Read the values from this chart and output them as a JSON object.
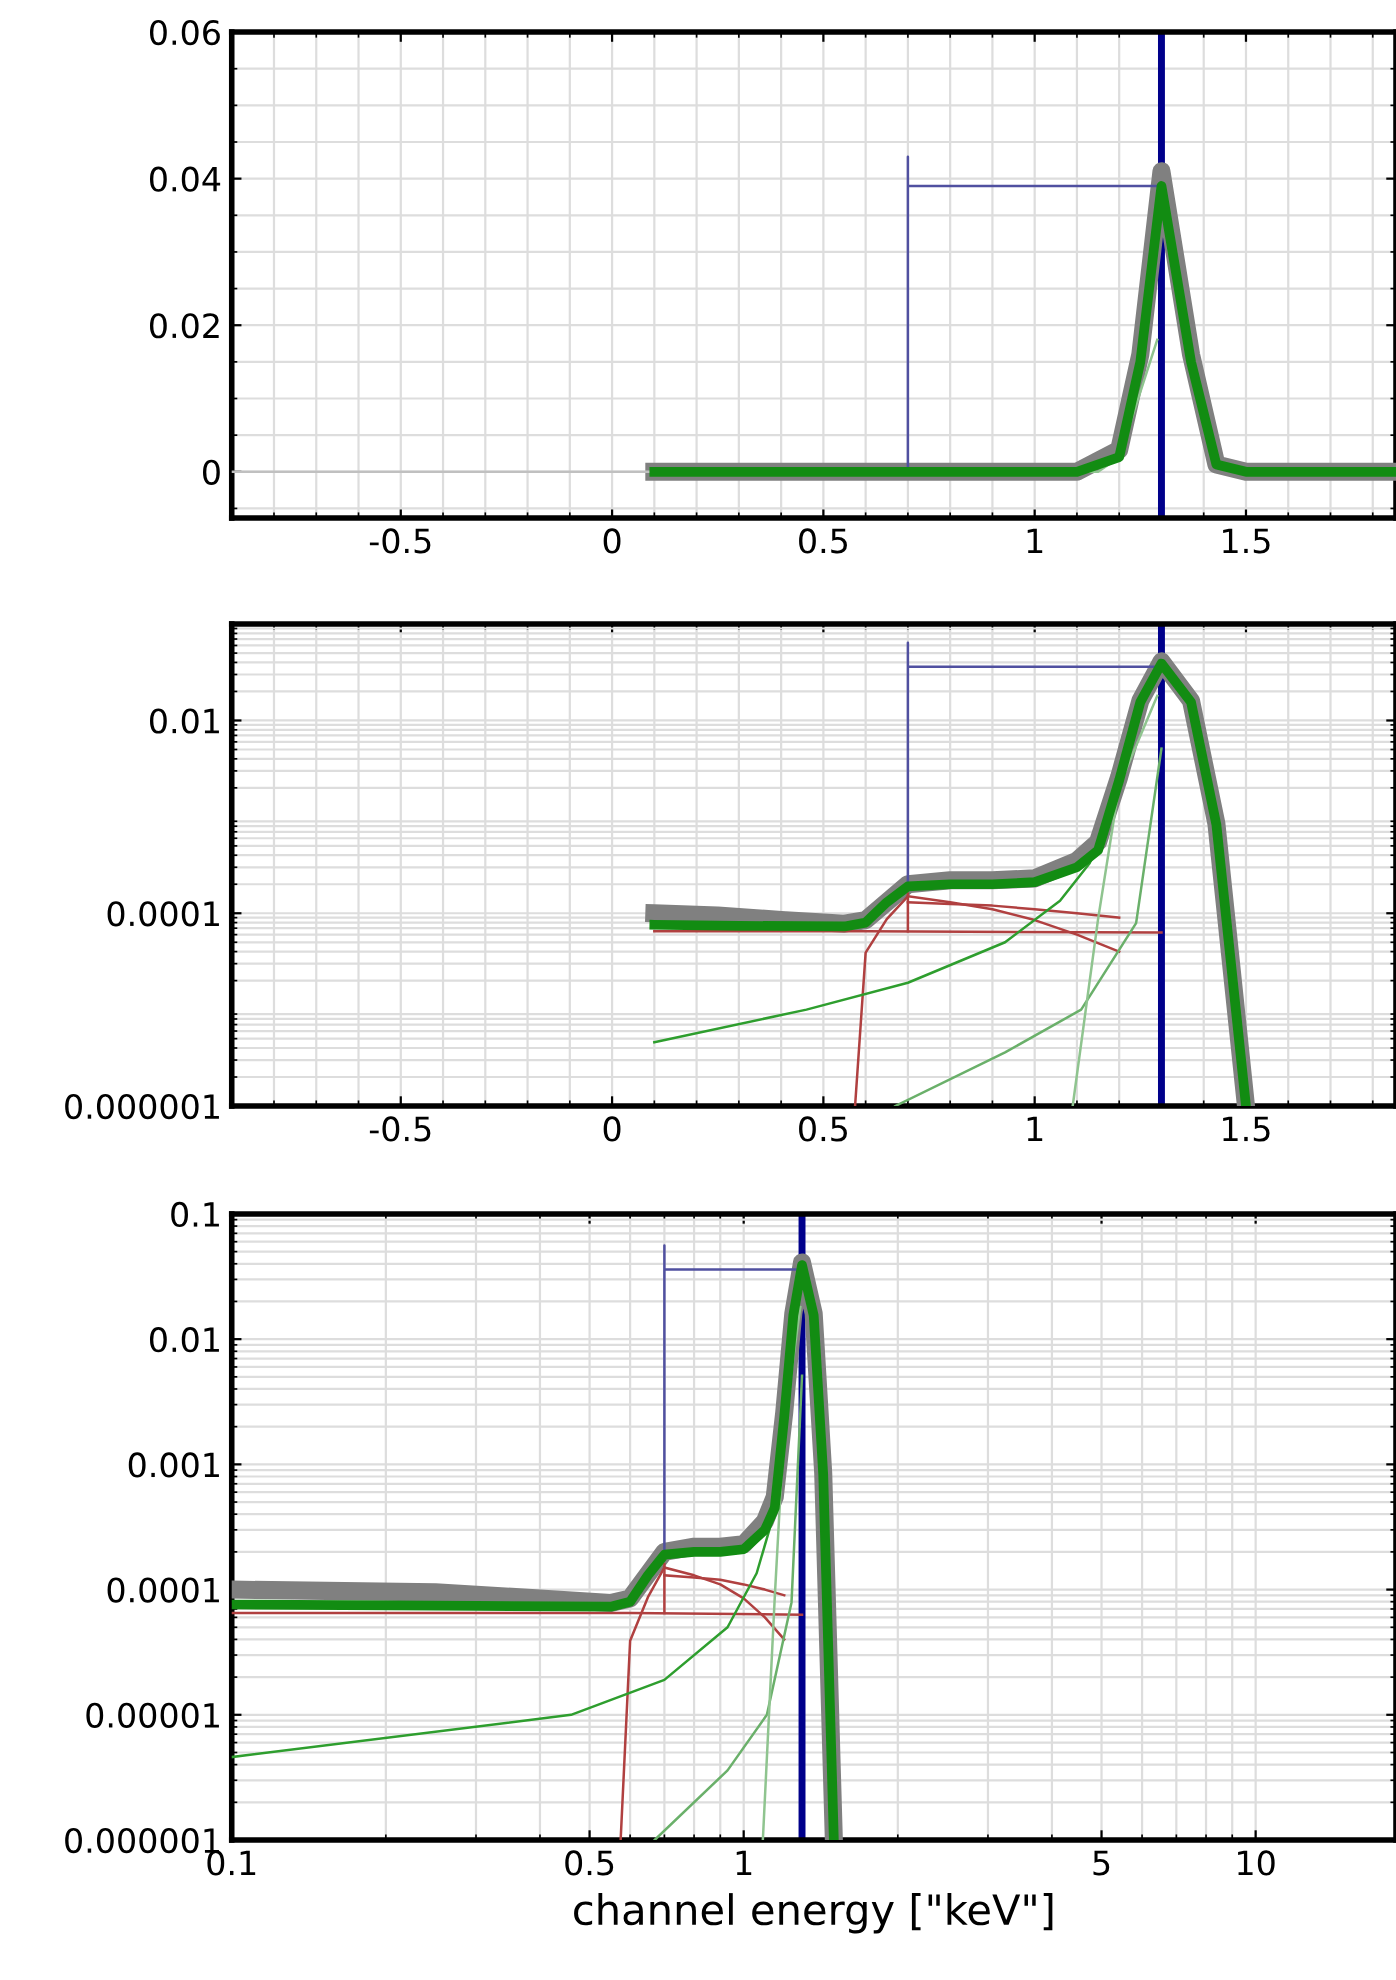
{
  "chart_data": [
    {
      "type": "line",
      "xlim": [
        -0.9,
        1.855
      ],
      "xticks": [
        -0.5,
        0,
        0.5,
        1,
        1.5
      ],
      "ylim": [
        -0.0063,
        0.06
      ],
      "yticks": [
        0,
        0.02,
        0.04,
        0.06
      ],
      "grid": true,
      "legend": false,
      "ref_lines": [
        {
          "axis": "x",
          "value": 1.3,
          "color": "#00008b"
        }
      ],
      "series": [
        {
          "color": "#808080",
          "x": [
            0.1,
            1.1,
            1.2,
            1.25,
            1.3,
            1.37,
            1.43,
            1.5,
            1.855
          ],
          "values": [
            0,
            0,
            0.003,
            0.016,
            0.041,
            0.016,
            0.001,
            0,
            0
          ]
        },
        {
          "color": "#128c12",
          "x": [
            0.1,
            1.1,
            1.2,
            1.25,
            1.3,
            1.37,
            1.43,
            1.5,
            1.855
          ],
          "values": [
            0,
            0,
            0.002,
            0.015,
            0.039,
            0.015,
            0.001,
            0,
            0
          ]
        },
        {
          "color": "#c0c0c0",
          "x": [
            -0.9,
            0.1
          ],
          "values": [
            0,
            0
          ]
        },
        {
          "color": "#8fc48f",
          "x": [
            1.09,
            1.15,
            1.2,
            1.29
          ],
          "values": [
            0,
            0,
            0.002,
            0.018
          ]
        },
        {
          "color": "#5050a0",
          "x": [
            0.7,
            0.7,
            0.7,
            1.3
          ],
          "values": [
            0,
            0.043,
            0.039,
            0.039
          ]
        }
      ]
    },
    {
      "type": "line",
      "log": "y",
      "xlim": [
        -0.9,
        1.855
      ],
      "xticks": [
        -0.5,
        0,
        0.5,
        1,
        1.5
      ],
      "ylim": [
        1e-06,
        0.1
      ],
      "yticks": [
        {
          "value": 1e-06,
          "label": "0.000001"
        },
        {
          "value": 0.0001,
          "label": "0.0001"
        },
        {
          "value": 0.01,
          "label": "0.01"
        }
      ],
      "grid": true,
      "legend": false,
      "ref_lines": [
        {
          "axis": "x",
          "value": 1.3,
          "color": "#00008b"
        }
      ],
      "series": [
        {
          "color": "#808080",
          "x": [
            0.1,
            0.25,
            0.4,
            0.55,
            0.6,
            0.7,
            0.8,
            0.9,
            1.0,
            1.1,
            1.15,
            1.2,
            1.25,
            1.3,
            1.37,
            1.43,
            1.5
          ],
          "values": [
            0.0001,
            9.5e-05,
            8.5e-05,
            7.8e-05,
            8.5e-05,
            0.0002,
            0.00022,
            0.00022,
            0.00023,
            0.00035,
            0.00055,
            0.0026,
            0.016,
            0.041,
            0.016,
            0.00085,
            1e-06
          ]
        },
        {
          "color": "#128c12",
          "x": [
            0.1,
            0.3,
            0.55,
            0.6,
            0.65,
            0.7,
            0.8,
            0.9,
            1.0,
            1.1,
            1.15,
            1.2,
            1.25,
            1.3,
            1.37,
            1.43,
            1.5
          ],
          "values": [
            7.6e-05,
            7.4e-05,
            7.3e-05,
            8e-05,
            0.00013,
            0.00019,
            0.0002,
            0.0002,
            0.00021,
            0.0003,
            0.00045,
            0.0024,
            0.0155,
            0.039,
            0.0155,
            0.00083,
            1e-06
          ]
        },
        {
          "color": "#b04040",
          "x": [
            0.1,
            0.6,
            1.3
          ],
          "values": [
            6.5e-05,
            6.5e-05,
            6.3e-05
          ]
        },
        {
          "color": "#b04040",
          "x": [
            0.575,
            0.6,
            0.65,
            0.7
          ],
          "values": [
            1e-06,
            3.9e-05,
            8.7e-05,
            0.00015
          ]
        },
        {
          "color": "#b04040",
          "x": [
            0.7,
            0.7
          ],
          "values": [
            6.5e-05,
            0.00016
          ]
        },
        {
          "color": "#b04040",
          "x": [
            0.7,
            0.8,
            0.9,
            1.0,
            1.1,
            1.2
          ],
          "values": [
            0.00013,
            0.000125,
            0.00012,
            0.00011,
            0.0001,
            9e-05
          ]
        },
        {
          "color": "#b04040",
          "x": [
            0.7,
            0.8,
            0.9,
            1.0,
            1.1,
            1.2
          ],
          "values": [
            0.00015,
            0.00013,
            0.00011,
            8.5e-05,
            6e-05,
            4e-05
          ]
        },
        {
          "color": "#2e9e2e",
          "x": [
            0.1,
            0.46,
            0.7,
            0.93,
            1.06,
            1.13,
            1.17
          ],
          "values": [
            4.6e-06,
            1e-05,
            1.9e-05,
            5e-05,
            0.000135,
            0.00033,
            0.0008
          ]
        },
        {
          "color": "#6ab06a",
          "x": [
            0.67,
            0.93,
            1.11,
            1.24,
            1.3
          ],
          "values": [
            1e-06,
            3.6e-06,
            1e-05,
            7.9e-05,
            0.0051
          ]
        },
        {
          "color": "#8fc48f",
          "x": [
            1.09,
            1.15,
            1.2,
            1.29
          ],
          "values": [
            1e-06,
            8.7e-05,
            0.0021,
            0.018
          ]
        },
        {
          "color": "#5050a0",
          "x": [
            0.7,
            0.7,
            0.7,
            1.3
          ],
          "values": [
            0.00019,
            0.064,
            0.036,
            0.036
          ]
        }
      ]
    },
    {
      "type": "line",
      "log": "xy",
      "xlabel": "channel energy [\"keV\"]",
      "xlim": [
        0.1,
        18.8
      ],
      "xticks": [
        0.1,
        0.5,
        1,
        5,
        10
      ],
      "ylim": [
        1e-06,
        0.1
      ],
      "yticks": [
        {
          "value": 1e-06,
          "label": "0.000001"
        },
        {
          "value": 1e-05,
          "label": "0.00001"
        },
        {
          "value": 0.0001,
          "label": "0.0001"
        },
        0.001,
        0.01,
        0.1
      ],
      "grid": true,
      "legend": false,
      "ref_lines": [
        {
          "axis": "x",
          "value": 1.3,
          "color": "#00008b"
        }
      ],
      "series": [
        {
          "color": "#808080",
          "x": [
            0.1,
            0.25,
            0.4,
            0.55,
            0.6,
            0.7,
            0.8,
            0.9,
            1.0,
            1.1,
            1.15,
            1.2,
            1.25,
            1.3,
            1.37,
            1.43,
            1.5
          ],
          "values": [
            0.0001,
            9.5e-05,
            8.5e-05,
            7.8e-05,
            8.5e-05,
            0.0002,
            0.00022,
            0.00022,
            0.00023,
            0.00035,
            0.00055,
            0.0026,
            0.016,
            0.041,
            0.016,
            0.00085,
            1e-06
          ]
        },
        {
          "color": "#128c12",
          "x": [
            0.1,
            0.3,
            0.55,
            0.6,
            0.65,
            0.7,
            0.8,
            0.9,
            1.0,
            1.1,
            1.15,
            1.2,
            1.25,
            1.3,
            1.37,
            1.43,
            1.5
          ],
          "values": [
            7.6e-05,
            7.4e-05,
            7.3e-05,
            8e-05,
            0.00013,
            0.00019,
            0.0002,
            0.0002,
            0.00021,
            0.0003,
            0.00045,
            0.0024,
            0.0155,
            0.039,
            0.0155,
            0.00083,
            1e-06
          ]
        },
        {
          "color": "#b04040",
          "x": [
            0.1,
            0.6,
            1.3
          ],
          "values": [
            6.5e-05,
            6.5e-05,
            6.3e-05
          ]
        },
        {
          "color": "#b04040",
          "x": [
            0.575,
            0.6,
            0.65,
            0.7
          ],
          "values": [
            1e-06,
            3.9e-05,
            8.7e-05,
            0.00015
          ]
        },
        {
          "color": "#b04040",
          "x": [
            0.7,
            0.7
          ],
          "values": [
            6.5e-05,
            0.00016
          ]
        },
        {
          "color": "#b04040",
          "x": [
            0.7,
            0.8,
            0.9,
            1.0,
            1.1,
            1.2
          ],
          "values": [
            0.00013,
            0.000125,
            0.00012,
            0.00011,
            0.0001,
            9e-05
          ]
        },
        {
          "color": "#b04040",
          "x": [
            0.7,
            0.8,
            0.9,
            1.0,
            1.1,
            1.2
          ],
          "values": [
            0.00015,
            0.00013,
            0.00011,
            8.5e-05,
            6e-05,
            4e-05
          ]
        },
        {
          "color": "#2e9e2e",
          "x": [
            0.1,
            0.46,
            0.7,
            0.93,
            1.06,
            1.13,
            1.17
          ],
          "values": [
            4.6e-06,
            1e-05,
            1.9e-05,
            5e-05,
            0.000135,
            0.00033,
            0.0008
          ]
        },
        {
          "color": "#6ab06a",
          "x": [
            0.67,
            0.93,
            1.11,
            1.24,
            1.3
          ],
          "values": [
            1e-06,
            3.6e-06,
            1e-05,
            7.9e-05,
            0.0051
          ]
        },
        {
          "color": "#8fc48f",
          "x": [
            1.09,
            1.15,
            1.2,
            1.29
          ],
          "values": [
            1e-06,
            8.7e-05,
            0.0021,
            0.018
          ]
        },
        {
          "color": "#5050a0",
          "x": [
            0.7,
            0.7,
            0.7,
            1.3
          ],
          "values": [
            0.00019,
            0.056,
            0.036,
            0.036
          ]
        }
      ]
    }
  ]
}
